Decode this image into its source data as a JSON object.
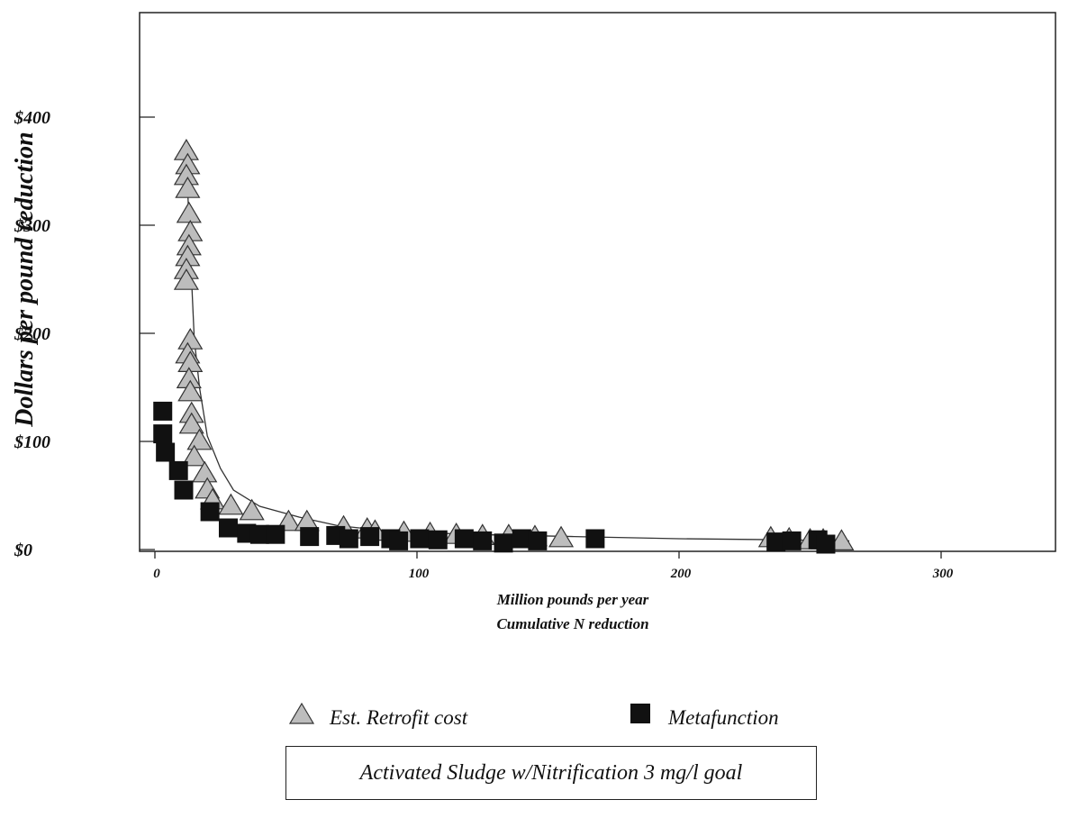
{
  "chart_data": {
    "type": "scatter",
    "title": "",
    "xlabel": [
      "Million pounds per year",
      "Cumulative N reduction"
    ],
    "ylabel": "Dollars per pound reduction",
    "xlim": [
      0,
      300
    ],
    "ylim": [
      0,
      400
    ],
    "x_ticks": [
      {
        "value": 0,
        "label": "0"
      },
      {
        "value": 100,
        "label": "100"
      },
      {
        "value": 200,
        "label": "200"
      },
      {
        "value": 300,
        "label": "300"
      }
    ],
    "y_ticks": [
      {
        "value": 0,
        "label": "$0"
      },
      {
        "value": 100,
        "label": "$100"
      },
      {
        "value": 200,
        "label": "$200"
      },
      {
        "value": 300,
        "label": "$300"
      },
      {
        "value": 400,
        "label": "$400"
      }
    ],
    "legend_position": "bottom",
    "grid": false,
    "series": [
      {
        "name": "Est. Retrofit cost",
        "marker": "triangle",
        "color": "#bdbdbd",
        "x": [
          12,
          12.5,
          12,
          12.5,
          13,
          13.5,
          13,
          12.5,
          12,
          12,
          13.5,
          12.5,
          13.5,
          13,
          13.5,
          14,
          14,
          17,
          15,
          19,
          20,
          22,
          29,
          37,
          51,
          58,
          72,
          81,
          84,
          95,
          105,
          115,
          125,
          135,
          145,
          155,
          235,
          242,
          250,
          255,
          262
        ],
        "y": [
          368,
          355,
          345,
          333,
          310,
          293,
          280,
          270,
          258,
          248,
          193,
          180,
          172,
          157,
          145,
          125,
          115,
          100,
          85,
          70,
          55,
          45,
          40,
          35,
          25,
          25,
          20,
          18,
          16,
          15,
          14,
          13,
          12,
          12,
          11,
          10,
          10,
          9,
          8,
          8,
          7
        ]
      },
      {
        "name": "Metafunction",
        "marker": "square",
        "color": "#111111",
        "x": [
          3,
          3,
          4,
          9,
          11,
          21,
          28,
          35,
          40,
          46,
          59,
          69,
          74,
          82,
          90,
          93,
          101,
          108,
          118,
          125,
          133,
          140,
          146,
          168,
          237,
          243,
          253,
          256
        ],
        "y": [
          128,
          107,
          90,
          73,
          55,
          35,
          20,
          15,
          14,
          14,
          12,
          13,
          10,
          12,
          10,
          8,
          10,
          9,
          10,
          8,
          6,
          10,
          8,
          10,
          7,
          8,
          9,
          5
        ]
      }
    ],
    "fit_curve": {
      "x": [
        12,
        13,
        14,
        15,
        17,
        20,
        25,
        30,
        40,
        55,
        70,
        90,
        120,
        160,
        200,
        240,
        265
      ],
      "y": [
        372,
        300,
        250,
        195,
        150,
        105,
        75,
        55,
        40,
        30,
        22,
        17,
        14,
        12,
        10,
        9,
        8
      ]
    },
    "annotation_box": "Activated Sludge w/Nitrification 3 mg/l goal"
  }
}
